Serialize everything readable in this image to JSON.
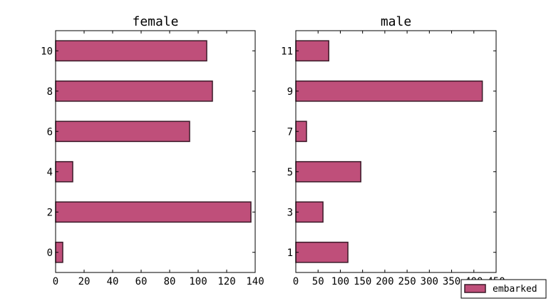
{
  "chart_data": [
    {
      "type": "bar",
      "orientation": "horizontal",
      "title": "female",
      "categories": [
        "0",
        "2",
        "4",
        "6",
        "8",
        "10"
      ],
      "series": [
        {
          "name": "embarked",
          "values": [
            5,
            137,
            12,
            94,
            110,
            106
          ]
        }
      ],
      "xlim": [
        0,
        140
      ],
      "xticks": [
        "0",
        "20",
        "40",
        "60",
        "80",
        "100",
        "120",
        "140"
      ],
      "xlabel": "",
      "ylabel": "",
      "grid": false
    },
    {
      "type": "bar",
      "orientation": "horizontal",
      "title": "male",
      "categories": [
        "1",
        "3",
        "5",
        "7",
        "9",
        "11"
      ],
      "series": [
        {
          "name": "embarked",
          "values": [
            117,
            61,
            146,
            24,
            419,
            74
          ]
        }
      ],
      "xlim": [
        0,
        450
      ],
      "xticks": [
        "0",
        "50",
        "100",
        "150",
        "200",
        "250",
        "300",
        "350",
        "400",
        "450"
      ],
      "xlabel": "",
      "ylabel": "",
      "grid": false
    }
  ],
  "legend": {
    "placement": "bottom-right",
    "entries": [
      {
        "label": "embarked",
        "color": "#bf4f7a"
      }
    ]
  },
  "colors": {
    "bar_fill": "#bf4f7a",
    "bar_edge": "#3a1a28",
    "axis": "#000000",
    "background": "#ffffff"
  }
}
